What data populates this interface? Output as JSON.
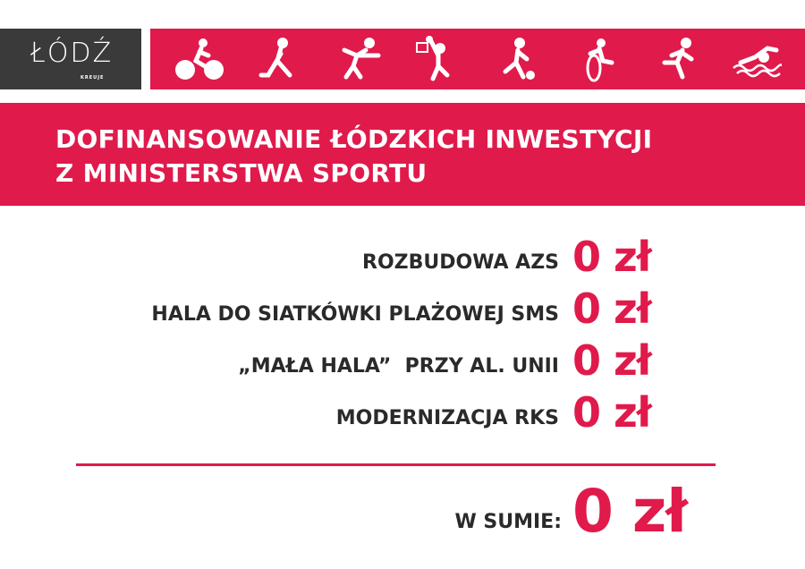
{
  "logo": {
    "text": "ŁÓDŹ",
    "subtext": "KREUJE"
  },
  "brand_colors": {
    "accent": "#e01a4b",
    "dark": "#3a3a3a"
  },
  "sport_icons": [
    "cycling-icon",
    "hockey-icon",
    "handball-icon",
    "basketball-icon",
    "football-icon",
    "wheelchair-icon",
    "running-icon",
    "swimming-icon"
  ],
  "title": {
    "line1": "DOFINANSOWANIE ŁÓDZKICH INWESTYCJI",
    "line2": "Z MINISTERSTWA SPORTU"
  },
  "items": [
    {
      "label": "ROZBUDOWA AZS",
      "value": "0 zł"
    },
    {
      "label": "HALA DO SIATKÓWKI PLAŻOWEJ SMS",
      "value": "0 zł"
    },
    {
      "label": "„MAŁA HALA”  PRZY AL. UNII",
      "value": "0 zł"
    },
    {
      "label": "MODERNIZACJA RKS",
      "value": "0 zł"
    }
  ],
  "total": {
    "label": "W SUMIE:",
    "value": "0 zł"
  }
}
